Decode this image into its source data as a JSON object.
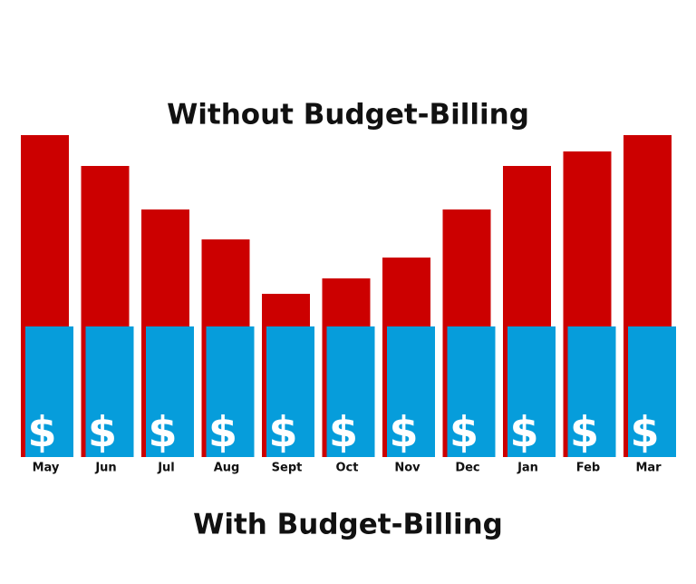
{
  "chart_data": {
    "type": "overlay-bar",
    "categories": [
      "May",
      "Jun",
      "Jul",
      "Aug",
      "Sept",
      "Oct",
      "Nov",
      "Dec",
      "Jan",
      "Feb",
      "Mar"
    ],
    "series": [
      {
        "name": "Without Budget-Billing",
        "color": "#cc0000",
        "values": [
          355,
          321,
          273,
          240,
          180,
          197,
          220,
          273,
          321,
          337,
          355
        ]
      },
      {
        "name": "With Budget-Billing",
        "color": "#069ddb",
        "values": [
          144,
          144,
          144,
          144,
          144,
          144,
          144,
          144,
          144,
          144,
          144
        ]
      }
    ],
    "bar_symbol": "$",
    "ylim": [
      0,
      360
    ]
  }
}
